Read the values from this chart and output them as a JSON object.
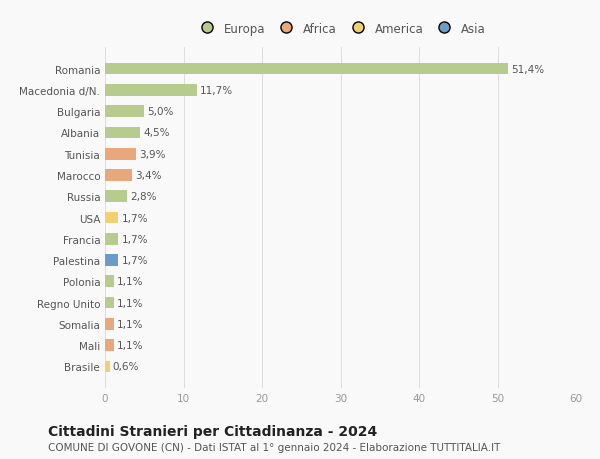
{
  "categories": [
    "Romania",
    "Macedonia d/N.",
    "Bulgaria",
    "Albania",
    "Tunisia",
    "Marocco",
    "Russia",
    "USA",
    "Francia",
    "Palestina",
    "Polonia",
    "Regno Unito",
    "Somalia",
    "Mali",
    "Brasile"
  ],
  "values": [
    51.4,
    11.7,
    5.0,
    4.5,
    3.9,
    3.4,
    2.8,
    1.7,
    1.7,
    1.7,
    1.1,
    1.1,
    1.1,
    1.1,
    0.6
  ],
  "labels": [
    "51,4%",
    "11,7%",
    "5,0%",
    "4,5%",
    "3,9%",
    "3,4%",
    "2,8%",
    "1,7%",
    "1,7%",
    "1,7%",
    "1,1%",
    "1,1%",
    "1,1%",
    "1,1%",
    "0,6%"
  ],
  "colors": [
    "#b5cc8e",
    "#b5cc8e",
    "#b5cc8e",
    "#b5cc8e",
    "#e8a87c",
    "#e8a87c",
    "#b5cc8e",
    "#f0d070",
    "#b5cc8e",
    "#6b9bc8",
    "#b5cc8e",
    "#b5cc8e",
    "#e8a87c",
    "#e8a87c",
    "#f0d070"
  ],
  "legend_labels": [
    "Europa",
    "Africa",
    "America",
    "Asia"
  ],
  "legend_colors": [
    "#b5cc8e",
    "#e8a87c",
    "#f0d070",
    "#6b9bc8"
  ],
  "xlim": [
    0,
    60
  ],
  "xticks": [
    0,
    10,
    20,
    30,
    40,
    50,
    60
  ],
  "title": "Cittadini Stranieri per Cittadinanza - 2024",
  "subtitle": "COMUNE DI GOVONE (CN) - Dati ISTAT al 1° gennaio 2024 - Elaborazione TUTTITALIA.IT",
  "background_color": "#f9f9f9",
  "bar_height": 0.55,
  "title_fontsize": 10,
  "subtitle_fontsize": 7.5,
  "label_fontsize": 7.5,
  "tick_fontsize": 7.5,
  "legend_fontsize": 8.5
}
